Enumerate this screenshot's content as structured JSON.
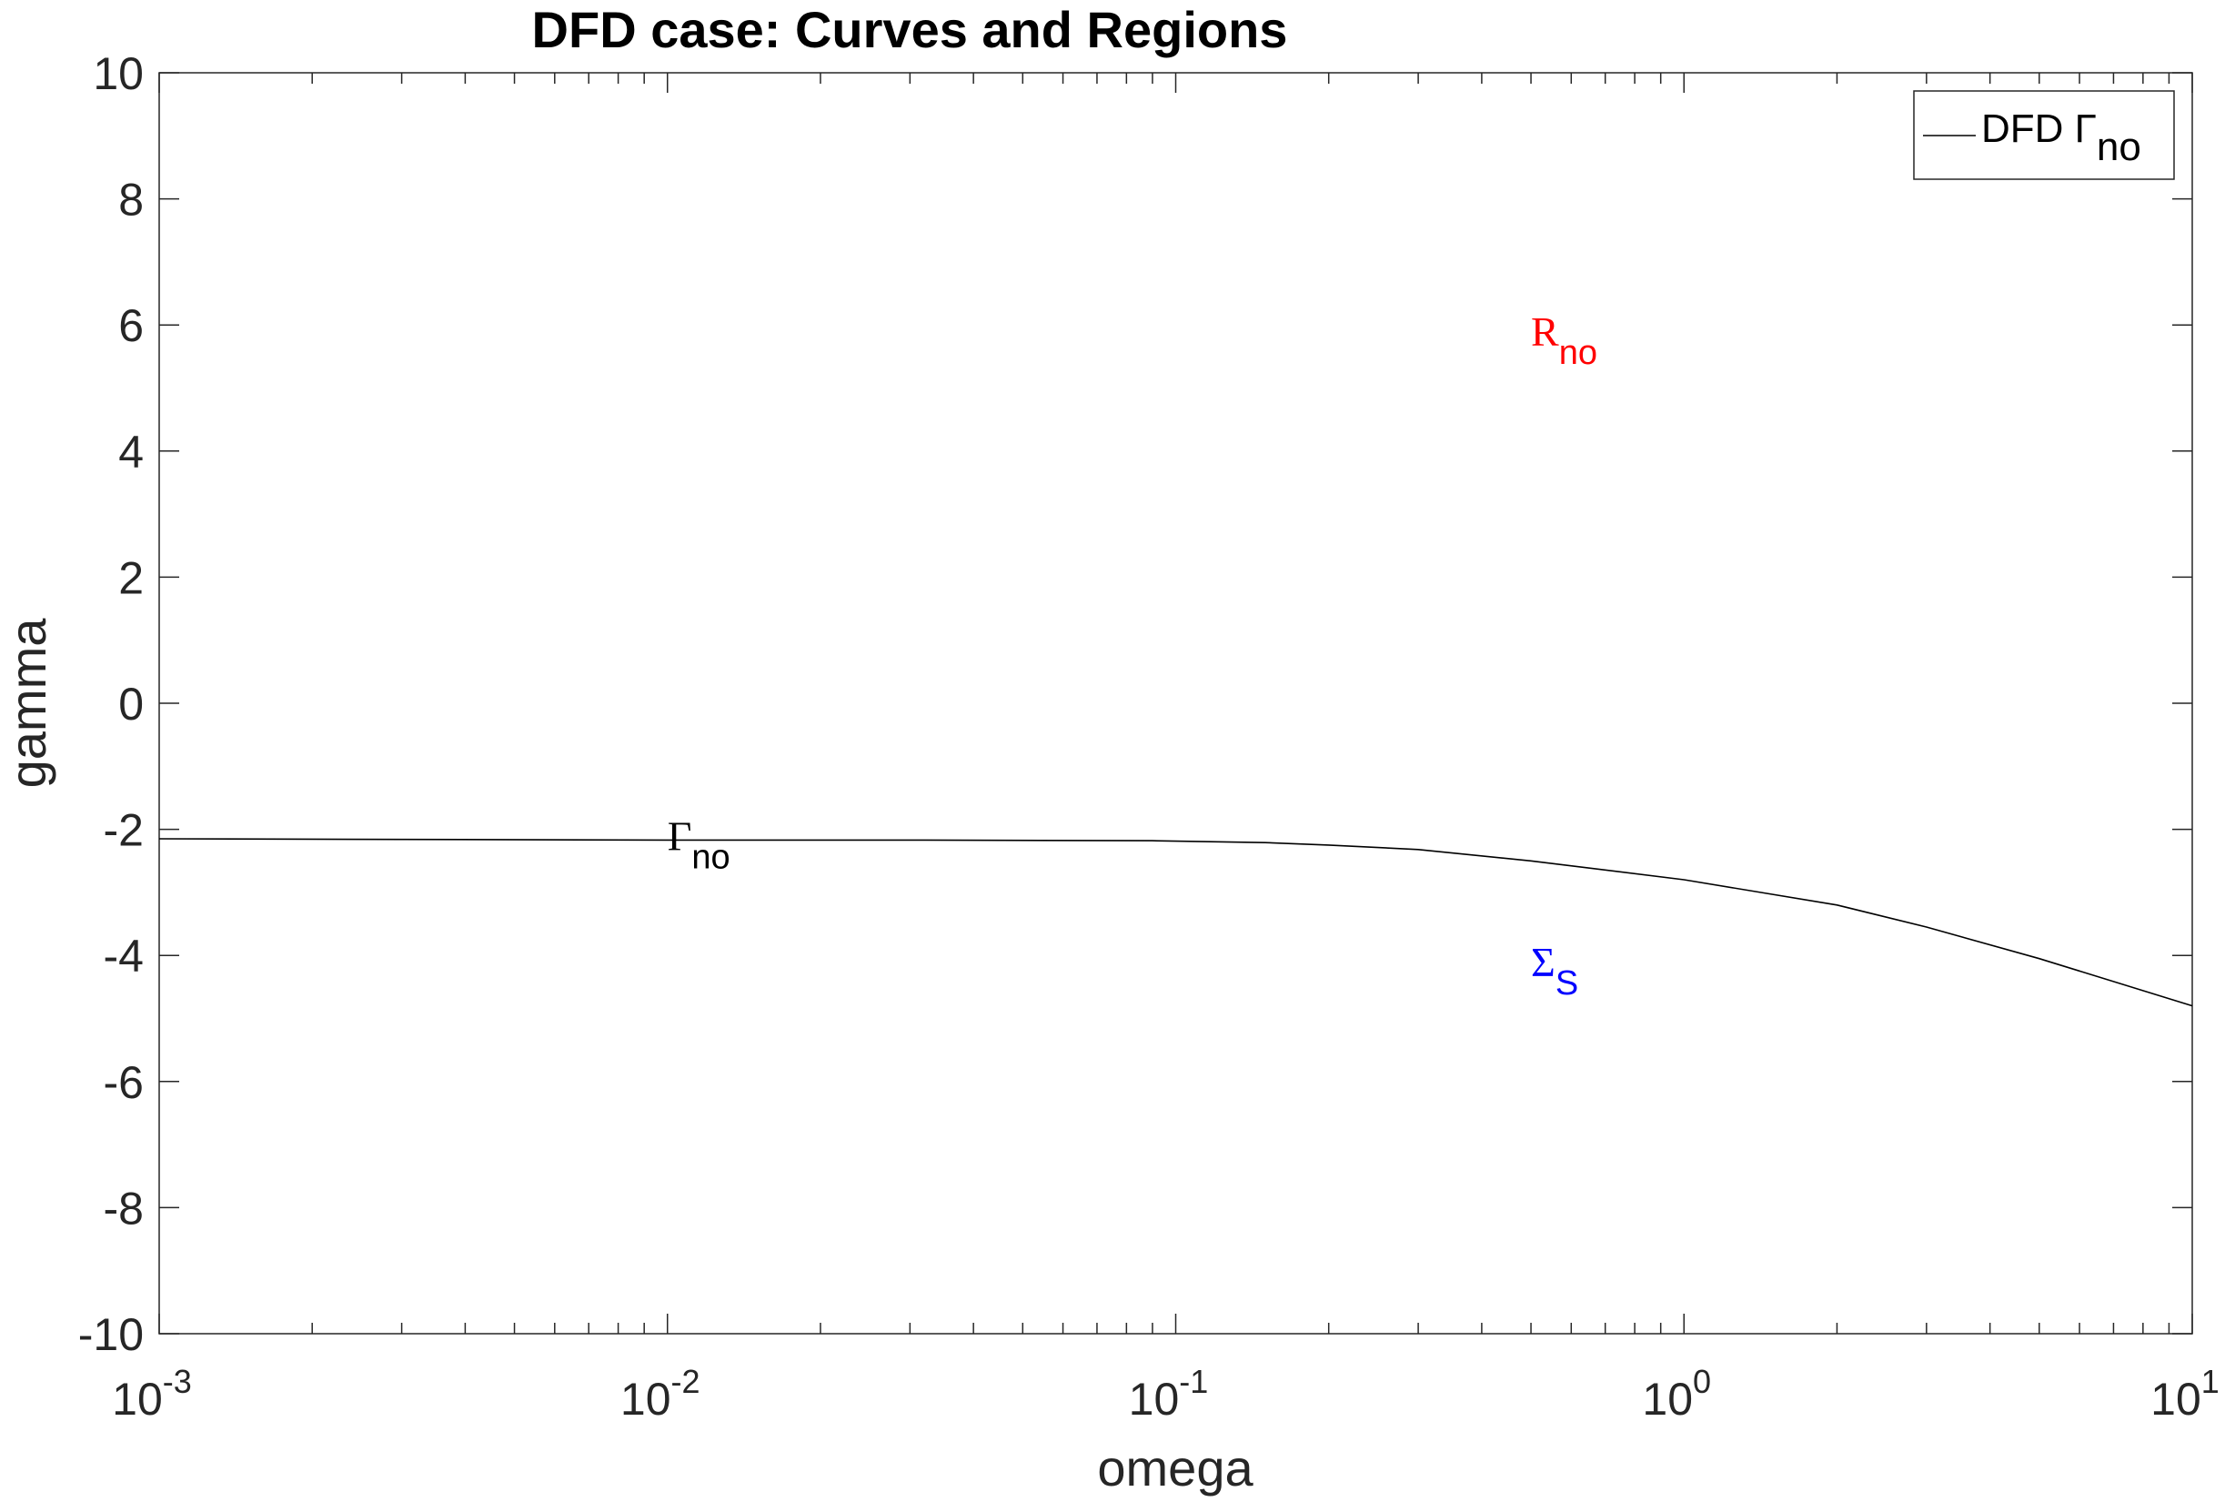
{
  "chart_data": {
    "type": "line",
    "title": "DFD case: Curves and Regions",
    "xlabel": "omega",
    "ylabel": "gamma",
    "xscale": "log",
    "xlim": [
      0.001,
      10
    ],
    "ylim": [
      -10,
      10
    ],
    "x_ticks": [
      {
        "value": 0.001,
        "base": "10",
        "exp": "-3"
      },
      {
        "value": 0.01,
        "base": "10",
        "exp": "-2"
      },
      {
        "value": 0.1,
        "base": "10",
        "exp": "-1"
      },
      {
        "value": 1,
        "base": "10",
        "exp": "0"
      },
      {
        "value": 10,
        "base": "10",
        "exp": "1"
      }
    ],
    "y_ticks": [
      {
        "value": 10,
        "label": "10"
      },
      {
        "value": 8,
        "label": "8"
      },
      {
        "value": 6,
        "label": "6"
      },
      {
        "value": 4,
        "label": "4"
      },
      {
        "value": 2,
        "label": "2"
      },
      {
        "value": 0,
        "label": "0"
      },
      {
        "value": -2,
        "label": "-2"
      },
      {
        "value": -4,
        "label": "-4"
      },
      {
        "value": -6,
        "label": "-6"
      },
      {
        "value": -8,
        "label": "-8"
      },
      {
        "value": -10,
        "label": "-10"
      }
    ],
    "grid": false,
    "legend_position": "top-right",
    "series": [
      {
        "name": "DFD Γno",
        "legend_main": "DFD Γ",
        "legend_sub": "no",
        "color": "#000000",
        "x": [
          0.001,
          0.003,
          0.01,
          0.03,
          0.09,
          0.15,
          0.2,
          0.3,
          0.5,
          1,
          2,
          3,
          5,
          10
        ],
        "y": [
          -2.15,
          -2.16,
          -2.17,
          -2.17,
          -2.18,
          -2.21,
          -2.25,
          -2.32,
          -2.5,
          -2.8,
          -3.2,
          -3.55,
          -4.05,
          -4.8
        ]
      }
    ],
    "annotations": [
      {
        "main": "Γ",
        "sub": "no",
        "x": 0.01,
        "y": -2.1,
        "color": "#000000"
      },
      {
        "main": "R",
        "sub": "no",
        "x": 0.5,
        "y": 5.9,
        "color": "#ff0000"
      },
      {
        "main": "Σ",
        "sub": "S",
        "x": 0.5,
        "y": -4.1,
        "color": "#0000ff"
      }
    ]
  }
}
